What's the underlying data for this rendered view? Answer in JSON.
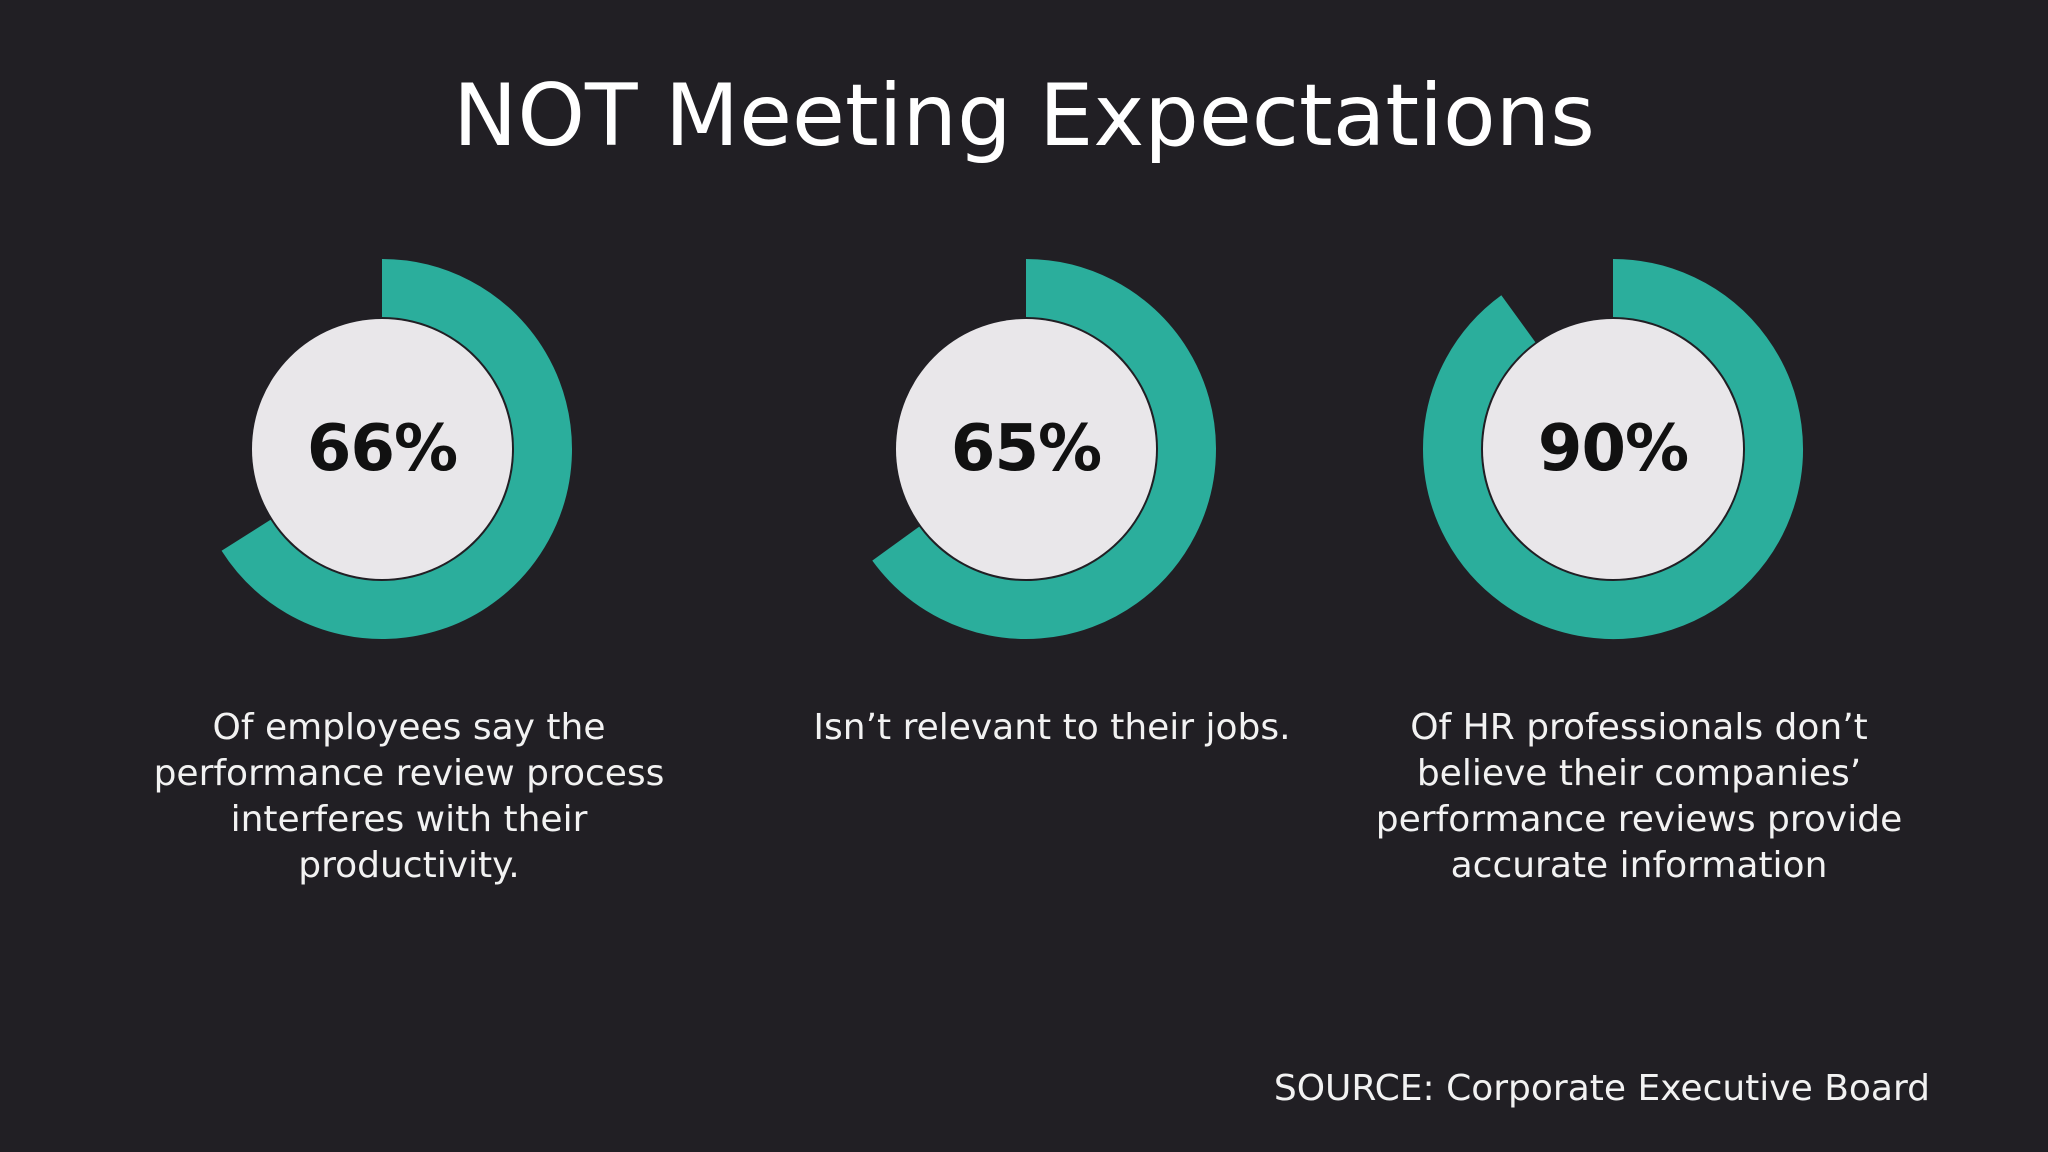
{
  "title": "NOT Meeting Expectations",
  "colors": {
    "background": "#211f24",
    "arc": "#2bae9c",
    "disc": "#e9e7ea",
    "text": "#ffffff"
  },
  "chart_data": {
    "type": "pie",
    "title": "NOT Meeting Expectations",
    "items": [
      {
        "value": 66,
        "label": "66%",
        "description": "Of employees say the performance review process interferes with their productivity."
      },
      {
        "value": 65,
        "label": "65%",
        "description": "Isn’t relevant to their jobs."
      },
      {
        "value": 90,
        "label": "90%",
        "description": "Of HR professionals don’t believe their companies’ performance reviews provide accurate information"
      }
    ],
    "source": "SOURCE: Corporate Executive Board"
  }
}
